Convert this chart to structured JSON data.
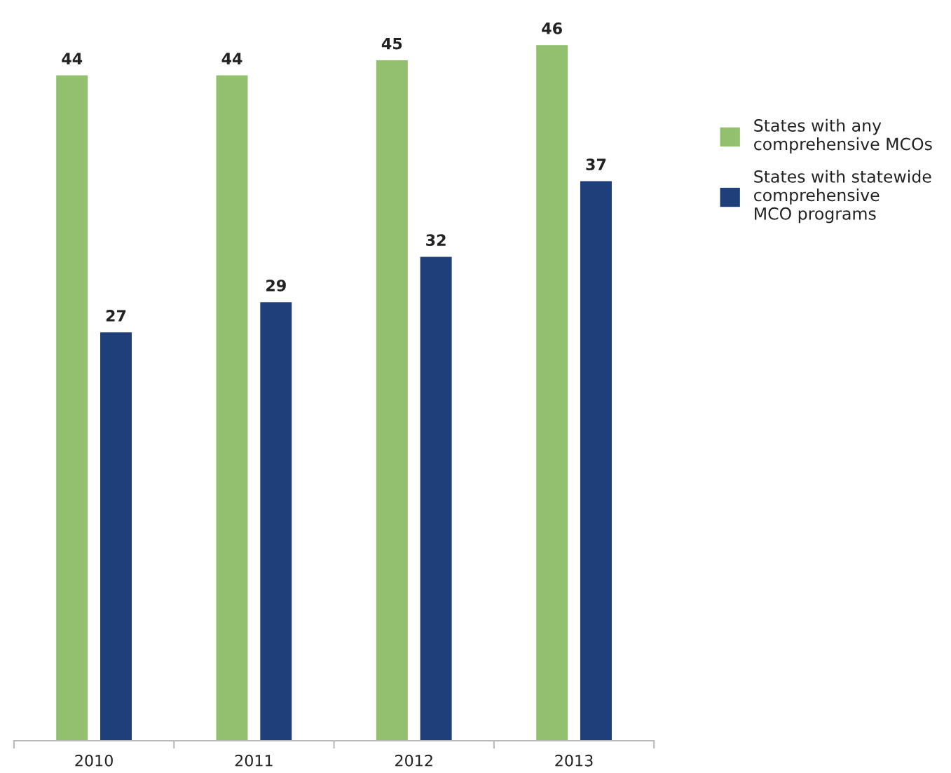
{
  "chart_data": {
    "type": "bar",
    "categories": [
      "2010",
      "2011",
      "2012",
      "2013"
    ],
    "series": [
      {
        "name": "States with any\ncomprehensive MCOs",
        "color": "#92c06f",
        "values": [
          44,
          44,
          45,
          46
        ]
      },
      {
        "name": "States with statewide\ncomprehensive\nMCO programs",
        "color": "#1f3f7a",
        "values": [
          27,
          29,
          32,
          37
        ]
      }
    ],
    "data_labels": true,
    "legend": "right",
    "grid": false,
    "tick_labels": "x"
  }
}
